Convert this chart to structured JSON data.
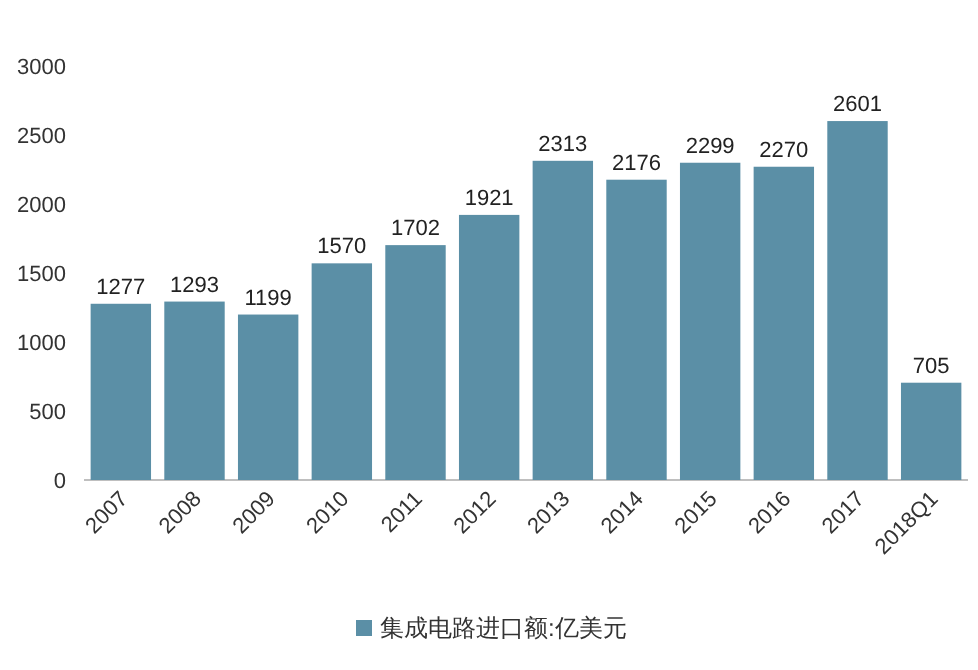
{
  "chart_data": {
    "type": "bar",
    "categories": [
      "2007",
      "2008",
      "2009",
      "2010",
      "2011",
      "2012",
      "2013",
      "2014",
      "2015",
      "2016",
      "2017",
      "2018Q1"
    ],
    "series": [
      {
        "name": "集成电路进口额:亿美元",
        "color": "#5b8fa6",
        "values": [
          1277,
          1293,
          1199,
          1570,
          1702,
          1921,
          2313,
          2176,
          2299,
          2270,
          2601,
          705
        ]
      }
    ],
    "ylim": [
      0,
      3000
    ],
    "yticks": [
      0,
      500,
      1000,
      1500,
      2000,
      2500,
      3000
    ],
    "data_labels": true,
    "legend": "bottom",
    "grid": false
  }
}
